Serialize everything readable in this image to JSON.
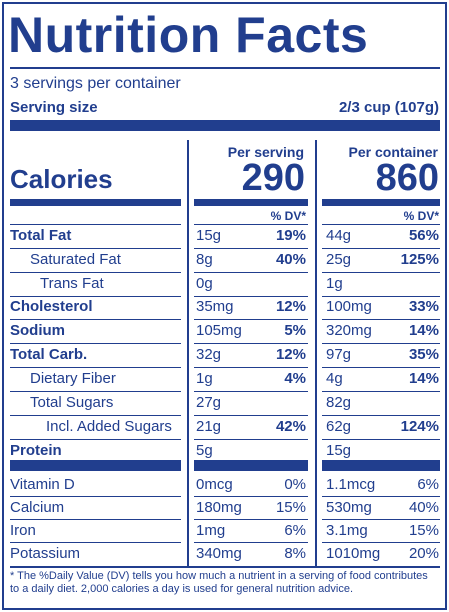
{
  "title": "Nutrition Facts",
  "servings_per_container": "3 servings per container",
  "serving_size_label": "Serving size",
  "serving_size_value": "2/3 cup (107g)",
  "per_serving_label": "Per serving",
  "per_container_label": "Per container",
  "calories_label": "Calories",
  "calories_serving": "290",
  "calories_container": "860",
  "dv_header": "% DV*",
  "nutrients": [
    {
      "label": "Total Fat",
      "serv": "15g",
      "serv_dv": "19%",
      "cont": "44g",
      "cont_dv": "56%"
    },
    {
      "label": "Saturated Fat",
      "serv": "8g",
      "serv_dv": "40%",
      "cont": "25g",
      "cont_dv": "125%"
    },
    {
      "label": "Trans Fat",
      "serv": "0g",
      "serv_dv": "",
      "cont": "1g",
      "cont_dv": ""
    },
    {
      "label": "Cholesterol",
      "serv": "35mg",
      "serv_dv": "12%",
      "cont": "100mg",
      "cont_dv": "33%"
    },
    {
      "label": "Sodium",
      "serv": "105mg",
      "serv_dv": "5%",
      "cont": "320mg",
      "cont_dv": "14%"
    },
    {
      "label": "Total Carb.",
      "serv": "32g",
      "serv_dv": "12%",
      "cont": "97g",
      "cont_dv": "35%"
    },
    {
      "label": "Dietary Fiber",
      "serv": "1g",
      "serv_dv": "4%",
      "cont": "4g",
      "cont_dv": "14%"
    },
    {
      "label": "Total Sugars",
      "serv": "27g",
      "serv_dv": "",
      "cont": "82g",
      "cont_dv": ""
    },
    {
      "label": "Incl. Added Sugars",
      "serv": "21g",
      "serv_dv": "42%",
      "cont": "62g",
      "cont_dv": "124%"
    },
    {
      "label": "Protein",
      "serv": "5g",
      "serv_dv": "",
      "cont": "15g",
      "cont_dv": ""
    }
  ],
  "vitamins": [
    {
      "label": "Vitamin D",
      "serv": "0mcg",
      "serv_dv": "0%",
      "cont": "1.1mcg",
      "cont_dv": "6%"
    },
    {
      "label": "Calcium",
      "serv": "180mg",
      "serv_dv": "15%",
      "cont": "530mg",
      "cont_dv": "40%"
    },
    {
      "label": "Iron",
      "serv": "1mg",
      "serv_dv": "6%",
      "cont": "3.1mg",
      "cont_dv": "15%"
    },
    {
      "label": "Potassium",
      "serv": "340mg",
      "serv_dv": "8%",
      "cont": "1010mg",
      "cont_dv": "20%"
    }
  ],
  "footnote": "* The %Daily Value (DV) tells you how much a nutrient in a serving of food contributes to a daily diet. 2,000 calories a day is used for general nutrition advice."
}
